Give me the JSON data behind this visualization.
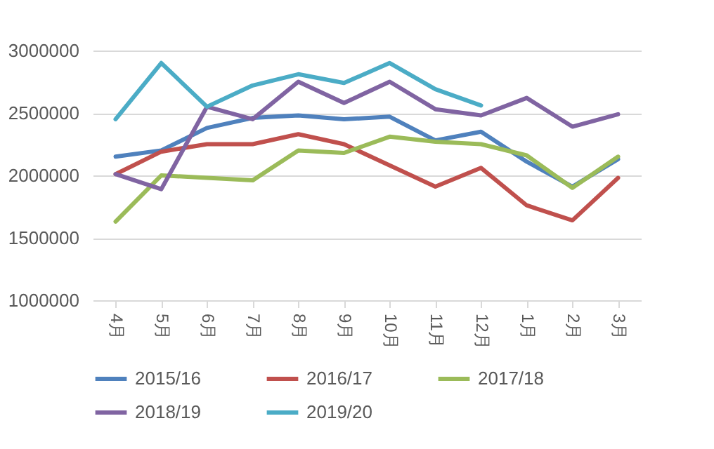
{
  "chart_data": {
    "type": "line",
    "categories": [
      "4月",
      "5月",
      "6月",
      "7月",
      "8月",
      "9月",
      "10月",
      "11月",
      "12月",
      "1月",
      "2月",
      "3月"
    ],
    "series": [
      {
        "name": "2015/16",
        "color": "#4f81bd",
        "values": [
          2150000,
          2200000,
          2380000,
          2460000,
          2480000,
          2450000,
          2470000,
          2280000,
          2350000,
          2110000,
          1910000,
          2130000
        ]
      },
      {
        "name": "2016/17",
        "color": "#c0504d",
        "values": [
          2010000,
          2190000,
          2250000,
          2250000,
          2330000,
          2250000,
          2080000,
          1910000,
          2060000,
          1760000,
          1640000,
          1980000
        ]
      },
      {
        "name": "2017/18",
        "color": "#9bbb59",
        "values": [
          1630000,
          2000000,
          1980000,
          1960000,
          2200000,
          2180000,
          2310000,
          2270000,
          2250000,
          2160000,
          1900000,
          2150000
        ]
      },
      {
        "name": "2018/19",
        "color": "#8064a2",
        "values": [
          2010000,
          1890000,
          2550000,
          2450000,
          2750000,
          2580000,
          2750000,
          2530000,
          2480000,
          2620000,
          2390000,
          2490000
        ]
      },
      {
        "name": "2019/20",
        "color": "#4bacc6",
        "values": [
          2450000,
          2900000,
          2550000,
          2720000,
          2810000,
          2740000,
          2900000,
          2690000,
          2560000,
          null,
          null,
          null
        ]
      }
    ],
    "ylim": [
      1000000,
      3000000
    ],
    "yticks": [
      1000000,
      1500000,
      2000000,
      2500000,
      3000000
    ],
    "grid": "y",
    "legend": "bottom",
    "marker": "none",
    "line_style": "solid"
  }
}
